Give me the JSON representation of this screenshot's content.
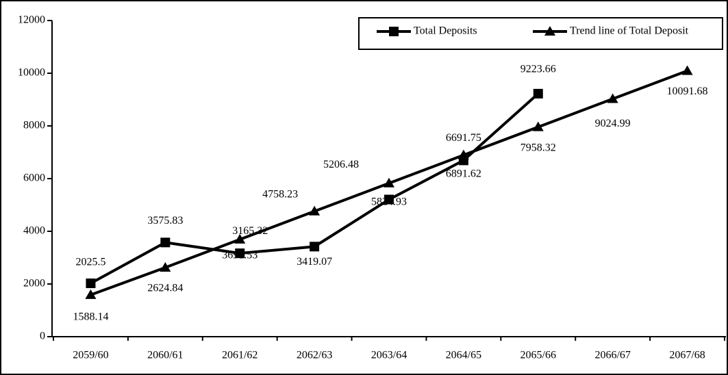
{
  "chart_data": {
    "type": "line",
    "categories": [
      "2059/60",
      "2060/61",
      "2061/62",
      "2062/63",
      "2063/64",
      "2064/65",
      "2065/66",
      "2066/67",
      "2067/68"
    ],
    "series": [
      {
        "name": "Total Deposits",
        "color": "#000000",
        "marker": "square",
        "values": [
          2025.5,
          3575.83,
          3165.32,
          3419.07,
          5206.48,
          6691.75,
          9223.66,
          null,
          null
        ]
      },
      {
        "name": "Trend line of Total Deposit",
        "color": "#000000",
        "marker": "triangle",
        "values": [
          1588.14,
          2624.84,
          3691.53,
          4758.23,
          5824.93,
          6891.62,
          7958.32,
          9024.99,
          10091.68
        ]
      }
    ],
    "ylim": [
      0,
      12000
    ],
    "yticks": [
      0,
      2000,
      4000,
      6000,
      8000,
      10000,
      12000
    ],
    "grid": false,
    "legend": "top-right"
  }
}
